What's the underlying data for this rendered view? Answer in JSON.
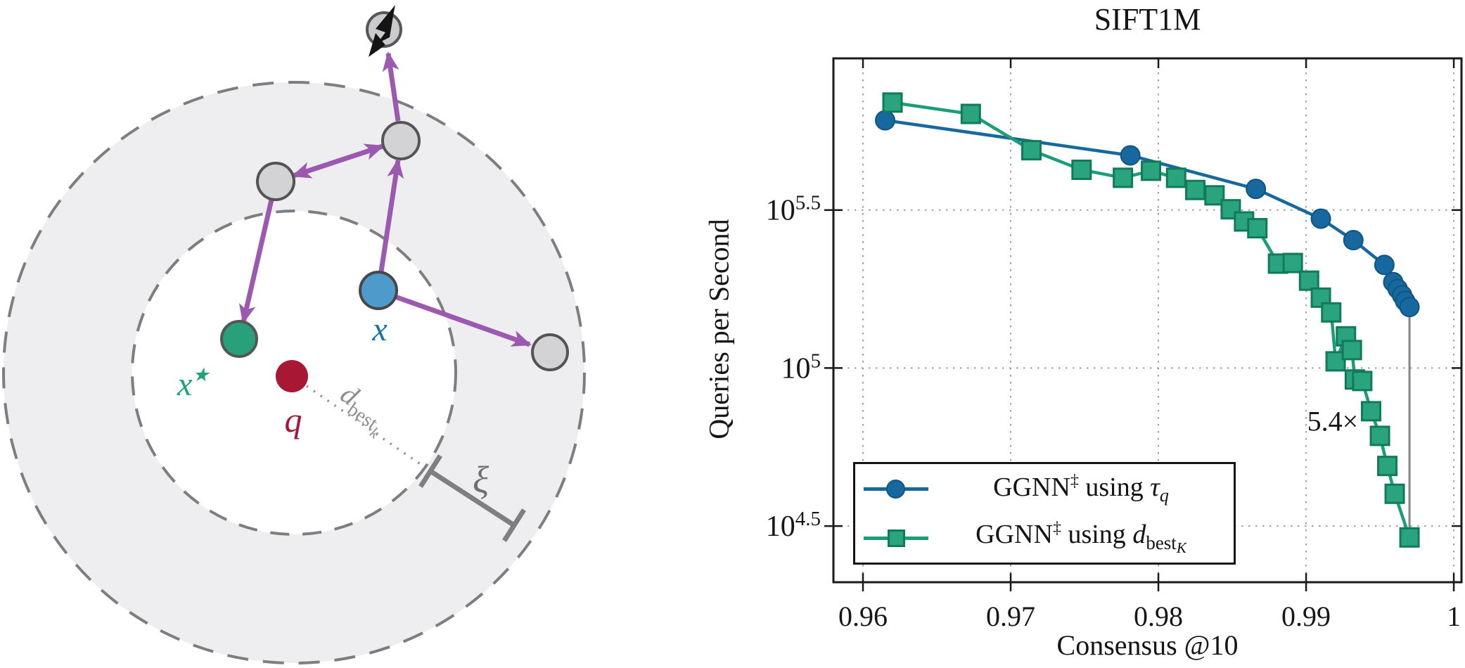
{
  "figure": {
    "title": "SIFT1M",
    "x_axis_label": "Consensus @10",
    "y_axis_label": "Queries per Second"
  },
  "chart_data": {
    "type": "line",
    "title": "SIFT1M",
    "xlabel": "Consensus @10",
    "ylabel": "Queries per Second",
    "x_scale": "linear",
    "y_scale": "log10",
    "xlim": [
      0.958,
      1.00052
    ],
    "ylim": [
      21000,
      955000
    ],
    "grid": "dotted",
    "legend_position": "south west",
    "x_ticks": [
      {
        "label": "0.96",
        "value": 0.96
      },
      {
        "label": "0.97",
        "value": 0.97
      },
      {
        "label": "0.98",
        "value": 0.98
      },
      {
        "label": "0.99",
        "value": 0.99
      },
      {
        "label": "1",
        "value": 1.0
      }
    ],
    "y_ticks": [
      {
        "base": "10",
        "exp": "5.5",
        "value": 316228
      },
      {
        "base": "10",
        "exp": "5",
        "value": 100000
      },
      {
        "base": "10",
        "exp": "4.5",
        "value": 31623
      }
    ],
    "series": [
      {
        "id": "tau",
        "name": "GGNN‡ using τ_q",
        "marker": "circle",
        "color": "#17689e",
        "marker_fill": "#17689e",
        "marker_stroke": "#115581",
        "x": [
          0.9615,
          0.9781,
          0.9866,
          0.991,
          0.9932,
          0.9953,
          0.9959,
          0.9962,
          0.9965,
          0.9967,
          0.997
        ],
        "qps": [
          608000,
          471000,
          369000,
          297000,
          254000,
          212000,
          187000,
          178000,
          170000,
          163000,
          156000
        ]
      },
      {
        "id": "dbest",
        "name": "GGNN‡ using d_best_K",
        "marker": "square",
        "color": "#1b9d77",
        "marker_fill": "#2aa47e",
        "marker_stroke": "#117a58",
        "x": [
          0.962,
          0.9673,
          0.9714,
          0.9748,
          0.9776,
          0.9795,
          0.9812,
          0.9825,
          0.9838,
          0.9849,
          0.9858,
          0.9867,
          0.9881,
          0.9891,
          0.9902,
          0.991,
          0.9917,
          0.992,
          0.9927,
          0.9931,
          0.9933,
          0.9938,
          0.9944,
          0.995,
          0.9955,
          0.996,
          0.997
        ],
        "qps": [
          692000,
          637000,
          489000,
          424000,
          400000,
          421000,
          400000,
          366000,
          352000,
          318000,
          291000,
          277000,
          214000,
          215000,
          189000,
          167000,
          150000,
          105000,
          126000,
          114000,
          92000,
          91000,
          73000,
          61000,
          49000,
          40000,
          29100
        ]
      }
    ],
    "annotation": {
      "text": "5.4×",
      "x": 0.9918,
      "qps": 68000,
      "color": "#9b9b9d"
    },
    "ratio_line": {
      "x": 0.997,
      "qps_top": 156000,
      "qps_bottom": 29100,
      "color": "#858587"
    },
    "legend": {
      "items": [
        {
          "prefix": "GGNN",
          "sup": "‡",
          "mid": "using",
          "sym": "τ",
          "sub": "q",
          "subsub": ""
        },
        {
          "prefix": "GGNN",
          "sup": "‡",
          "mid": "using",
          "sym": "d",
          "sub": "best",
          "subsub": "K"
        }
      ]
    }
  },
  "diagram": {
    "labels": {
      "query": "q",
      "best_base": "x",
      "best_sup": "★",
      "current": "x",
      "dist_base": "d",
      "dist_sub": "best",
      "dist_subsub": "k",
      "slack": "ξ"
    },
    "colors": {
      "query": "#a81734",
      "query_label": "#a21836",
      "current_fill": "#4e9aca",
      "current_label": "#1673a8",
      "best_fill": "#28a07a",
      "best_label": "#1fa179",
      "node_fill": "#d3d3d6",
      "node_stroke": "#545457",
      "edge": "#9c59b0",
      "ring": "#7e7e80",
      "annulus_fill": "#eeeef0",
      "measure": "#7f7f81",
      "dist_label": "#8f8f91",
      "lightning": "#141414"
    },
    "icons": [
      "lightning-icon"
    ]
  }
}
